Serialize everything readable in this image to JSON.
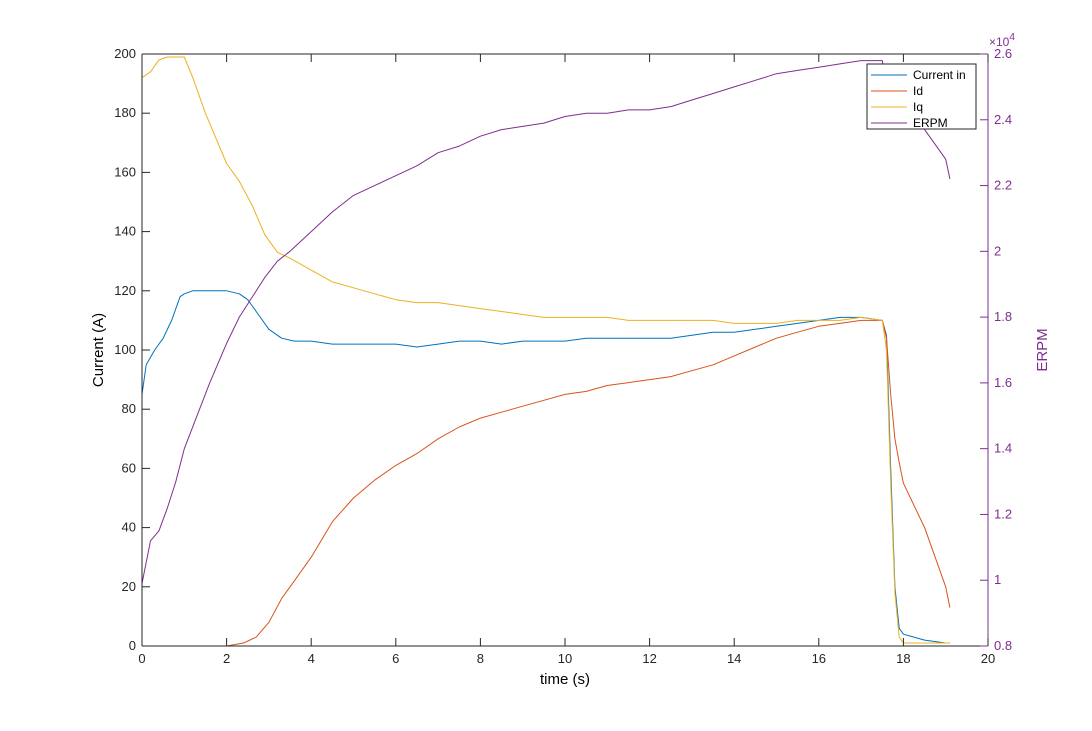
{
  "chart_data": {
    "type": "line",
    "xlabel": "time (s)",
    "ylabel_left": "Current (A)",
    "ylabel_right": "ERPM",
    "right_axis_exponent": "×10",
    "right_axis_exponent_power": "4",
    "xlim": [
      0,
      20
    ],
    "ylim_left": [
      0,
      200
    ],
    "ylim_right": [
      0.8,
      2.6
    ],
    "right_axis_scale": 10000,
    "x_ticks": [
      "0",
      "2",
      "4",
      "6",
      "8",
      "10",
      "12",
      "14",
      "16",
      "18",
      "20"
    ],
    "y_left_ticks": [
      "0",
      "20",
      "40",
      "60",
      "80",
      "100",
      "120",
      "140",
      "160",
      "180",
      "200"
    ],
    "y_right_ticks": [
      "0.8",
      "1",
      "1.2",
      "1.4",
      "1.6",
      "1.8",
      "2",
      "2.2",
      "2.4",
      "2.6"
    ],
    "grid": false,
    "legend_position": "top-right",
    "series": [
      {
        "name": "Current in",
        "axis": "left",
        "color": "#0072BD",
        "x": [
          0,
          0.1,
          0.3,
          0.5,
          0.7,
          0.9,
          1.0,
          1.2,
          1.5,
          2.0,
          2.3,
          2.5,
          2.7,
          3.0,
          3.3,
          3.6,
          4,
          4.5,
          5,
          5.5,
          6,
          6.5,
          7,
          7.5,
          8,
          8.5,
          9,
          9.5,
          10,
          10.5,
          11,
          11.5,
          12,
          12.5,
          13,
          13.5,
          14,
          14.5,
          15,
          15.5,
          16,
          16.5,
          17,
          17.5,
          17.6,
          17.7,
          17.8,
          17.9,
          18.0,
          18.5,
          19.0,
          19.1
        ],
        "y": [
          85,
          95,
          100,
          104,
          110,
          118,
          119,
          120,
          120,
          120,
          119,
          117,
          113,
          107,
          104,
          103,
          103,
          102,
          102,
          102,
          102,
          101,
          102,
          103,
          103,
          102,
          103,
          103,
          103,
          104,
          104,
          104,
          104,
          104,
          105,
          106,
          106,
          107,
          108,
          109,
          110,
          111,
          111,
          110,
          105,
          60,
          20,
          6,
          4,
          2,
          1,
          1
        ]
      },
      {
        "name": "Id",
        "axis": "left",
        "color": "#D95319",
        "x": [
          0,
          1,
          2,
          2.4,
          2.7,
          3,
          3.3,
          3.6,
          4,
          4.5,
          5,
          5.5,
          6,
          6.5,
          7,
          7.5,
          8,
          8.5,
          9,
          9.5,
          10,
          10.5,
          11,
          11.5,
          12,
          12.5,
          13,
          13.5,
          14,
          14.5,
          15,
          15.5,
          16,
          16.5,
          17,
          17.5,
          17.6,
          17.7,
          17.8,
          17.9,
          18.0,
          18.5,
          19.0,
          19.1
        ],
        "y": [
          0,
          0,
          0,
          1,
          3,
          8,
          16,
          22,
          30,
          42,
          50,
          56,
          61,
          65,
          70,
          74,
          77,
          79,
          81,
          83,
          85,
          86,
          88,
          89,
          90,
          91,
          93,
          95,
          98,
          101,
          104,
          106,
          108,
          109,
          110,
          110,
          104,
          85,
          70,
          62,
          55,
          40,
          20,
          13
        ]
      },
      {
        "name": "Iq",
        "axis": "left",
        "color": "#EDB120",
        "x": [
          0,
          0.2,
          0.4,
          0.6,
          0.8,
          1.0,
          1.2,
          1.5,
          2.0,
          2.3,
          2.6,
          2.9,
          3.2,
          3.5,
          4,
          4.5,
          5,
          5.5,
          6,
          6.5,
          7,
          7.5,
          8,
          8.5,
          9,
          9.5,
          10,
          10.5,
          11,
          11.5,
          12,
          12.5,
          13,
          13.5,
          14,
          14.5,
          15,
          15.5,
          16,
          16.5,
          17,
          17.5,
          17.6,
          17.7,
          17.8,
          17.9,
          18.0,
          18.5,
          19.0,
          19.1
        ],
        "y": [
          192,
          194,
          198,
          199,
          199,
          199,
          192,
          180,
          163,
          157,
          149,
          139,
          133,
          131,
          127,
          123,
          121,
          119,
          117,
          116,
          116,
          115,
          114,
          113,
          112,
          111,
          111,
          111,
          111,
          110,
          110,
          110,
          110,
          110,
          109,
          109,
          109,
          110,
          110,
          110,
          111,
          110,
          100,
          55,
          18,
          3,
          1,
          1,
          1,
          1
        ]
      },
      {
        "name": "ERPM",
        "axis": "right",
        "color": "#7E2F8E",
        "x": [
          0,
          0.2,
          0.4,
          0.6,
          0.8,
          1.0,
          1.3,
          1.6,
          2.0,
          2.3,
          2.6,
          2.9,
          3.2,
          3.5,
          4,
          4.5,
          5,
          5.5,
          6,
          6.5,
          7,
          7.5,
          8,
          8.5,
          9,
          9.5,
          10,
          10.5,
          11,
          11.5,
          12,
          12.5,
          13,
          13.5,
          14,
          14.5,
          15,
          15.5,
          16,
          16.5,
          17,
          17.5,
          17.6,
          18.0,
          18.5,
          19.0,
          19.1
        ],
        "y": [
          0.99,
          1.12,
          1.15,
          1.22,
          1.3,
          1.4,
          1.5,
          1.6,
          1.72,
          1.8,
          1.86,
          1.92,
          1.97,
          2.0,
          2.06,
          2.12,
          2.17,
          2.2,
          2.23,
          2.26,
          2.3,
          2.32,
          2.35,
          2.37,
          2.38,
          2.39,
          2.41,
          2.42,
          2.42,
          2.43,
          2.43,
          2.44,
          2.46,
          2.48,
          2.5,
          2.52,
          2.54,
          2.55,
          2.56,
          2.57,
          2.58,
          2.58,
          2.5,
          2.45,
          2.37,
          2.28,
          2.22
        ]
      }
    ]
  }
}
